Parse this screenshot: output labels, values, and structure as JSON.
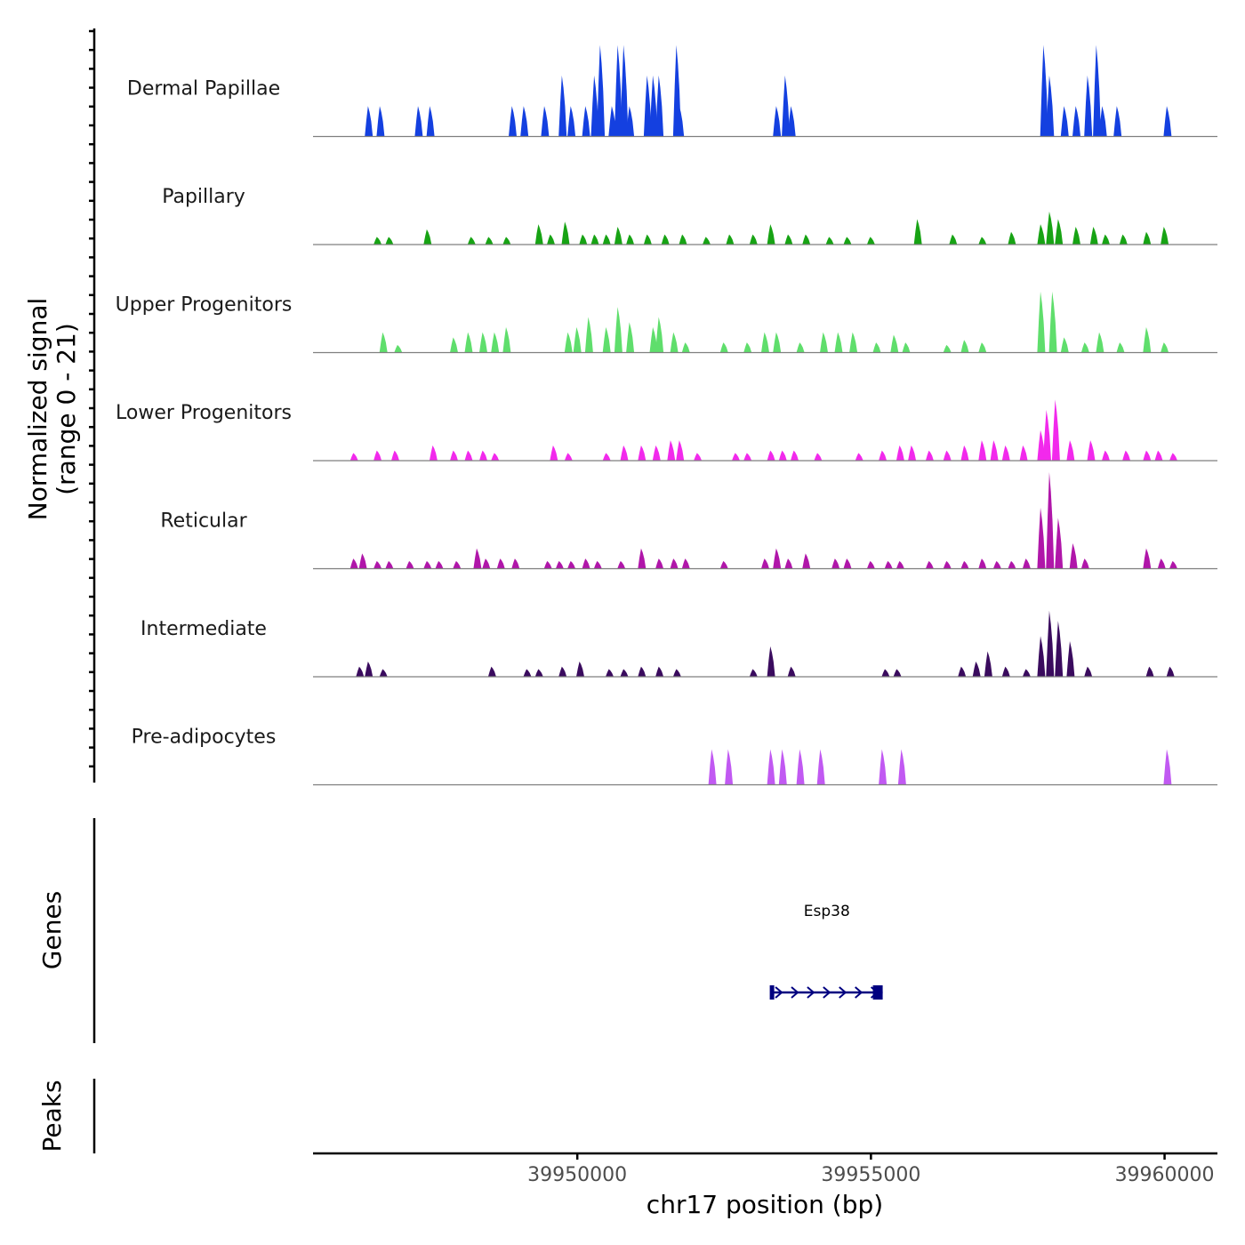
{
  "chart_data": {
    "type": "area",
    "title": "",
    "ylabel_lines": [
      "Normalized signal",
      "(range 0 - 21)"
    ],
    "y_range": [
      0,
      21
    ],
    "xlabel": "chr17 position (bp)",
    "xlim": [
      39945500,
      39960900
    ],
    "x_ticks": [
      {
        "value": 39950000,
        "label": "39950000"
      },
      {
        "value": 39955000,
        "label": "39955000"
      },
      {
        "value": 39960000,
        "label": "39960000"
      }
    ],
    "series": [
      {
        "name": "Dermal Papillae",
        "color": "#1440e0",
        "peaks": [
          [
            39946450,
            6
          ],
          [
            39946650,
            6
          ],
          [
            39947300,
            6
          ],
          [
            39947500,
            6
          ],
          [
            39948900,
            6
          ],
          [
            39949100,
            6
          ],
          [
            39949450,
            6
          ],
          [
            39949750,
            12
          ],
          [
            39949900,
            6
          ],
          [
            39950150,
            6
          ],
          [
            39950300,
            12
          ],
          [
            39950400,
            18
          ],
          [
            39950600,
            6
          ],
          [
            39950700,
            18
          ],
          [
            39950800,
            18
          ],
          [
            39950900,
            6
          ],
          [
            39951200,
            12
          ],
          [
            39951300,
            12
          ],
          [
            39951400,
            12
          ],
          [
            39951700,
            18
          ],
          [
            39951750,
            6
          ],
          [
            39953400,
            6
          ],
          [
            39953550,
            12
          ],
          [
            39953650,
            6
          ],
          [
            39957950,
            18
          ],
          [
            39958050,
            12
          ],
          [
            39958300,
            6
          ],
          [
            39958500,
            6
          ],
          [
            39958700,
            12
          ],
          [
            39958850,
            18
          ],
          [
            39958950,
            6
          ],
          [
            39959200,
            6
          ],
          [
            39960050,
            6
          ]
        ]
      },
      {
        "name": "Papillary",
        "color": "#17a314",
        "peaks": [
          [
            39946600,
            1.5
          ],
          [
            39946800,
            1.5
          ],
          [
            39947450,
            3
          ],
          [
            39948200,
            1.5
          ],
          [
            39948500,
            1.5
          ],
          [
            39948800,
            1.5
          ],
          [
            39949350,
            4
          ],
          [
            39949550,
            2
          ],
          [
            39949800,
            4.5
          ],
          [
            39950100,
            2
          ],
          [
            39950300,
            2
          ],
          [
            39950500,
            2
          ],
          [
            39950700,
            3.5
          ],
          [
            39950900,
            2
          ],
          [
            39951200,
            2
          ],
          [
            39951500,
            2
          ],
          [
            39951800,
            2
          ],
          [
            39952200,
            1.5
          ],
          [
            39952600,
            2
          ],
          [
            39953000,
            2
          ],
          [
            39953300,
            4
          ],
          [
            39953600,
            2
          ],
          [
            39953900,
            2
          ],
          [
            39954300,
            1.5
          ],
          [
            39954600,
            1.5
          ],
          [
            39955000,
            1.5
          ],
          [
            39955800,
            5
          ],
          [
            39956400,
            2
          ],
          [
            39956900,
            1.5
          ],
          [
            39957400,
            2.5
          ],
          [
            39957900,
            4
          ],
          [
            39958050,
            6.5
          ],
          [
            39958200,
            5
          ],
          [
            39958500,
            3.5
          ],
          [
            39958800,
            3.5
          ],
          [
            39959000,
            2
          ],
          [
            39959300,
            2
          ],
          [
            39959700,
            2.5
          ],
          [
            39960000,
            3.5
          ]
        ]
      },
      {
        "name": "Upper Progenitors",
        "color": "#5fde6c",
        "peaks": [
          [
            39946700,
            4
          ],
          [
            39946950,
            1.5
          ],
          [
            39947900,
            3
          ],
          [
            39948150,
            4
          ],
          [
            39948400,
            4
          ],
          [
            39948600,
            4
          ],
          [
            39948800,
            5
          ],
          [
            39949850,
            4
          ],
          [
            39950000,
            5
          ],
          [
            39950200,
            7
          ],
          [
            39950500,
            5
          ],
          [
            39950700,
            9
          ],
          [
            39950900,
            6
          ],
          [
            39951300,
            5
          ],
          [
            39951400,
            7
          ],
          [
            39951650,
            4
          ],
          [
            39951850,
            2
          ],
          [
            39952500,
            2
          ],
          [
            39952900,
            2
          ],
          [
            39953200,
            4
          ],
          [
            39953400,
            4
          ],
          [
            39953800,
            2
          ],
          [
            39954200,
            4
          ],
          [
            39954450,
            4
          ],
          [
            39954700,
            4
          ],
          [
            39955100,
            2
          ],
          [
            39955400,
            3.5
          ],
          [
            39955600,
            2
          ],
          [
            39956300,
            1.5
          ],
          [
            39956600,
            2.5
          ],
          [
            39956900,
            2
          ],
          [
            39957900,
            12
          ],
          [
            39958100,
            12
          ],
          [
            39958300,
            3
          ],
          [
            39958650,
            2
          ],
          [
            39958900,
            4
          ],
          [
            39959250,
            2
          ],
          [
            39959700,
            5
          ],
          [
            39960000,
            2
          ]
        ]
      },
      {
        "name": "Lower Progenitors",
        "color": "#f229ec",
        "peaks": [
          [
            39946200,
            1.5
          ],
          [
            39946600,
            2
          ],
          [
            39946900,
            2
          ],
          [
            39947550,
            3
          ],
          [
            39947900,
            2
          ],
          [
            39948150,
            2
          ],
          [
            39948400,
            2
          ],
          [
            39948600,
            1.5
          ],
          [
            39949600,
            3
          ],
          [
            39949850,
            1.5
          ],
          [
            39950500,
            1.5
          ],
          [
            39950800,
            3
          ],
          [
            39951100,
            3
          ],
          [
            39951350,
            3
          ],
          [
            39951600,
            4
          ],
          [
            39951750,
            4
          ],
          [
            39952050,
            1.5
          ],
          [
            39952700,
            1.5
          ],
          [
            39952900,
            1.5
          ],
          [
            39953300,
            2
          ],
          [
            39953500,
            2
          ],
          [
            39953700,
            2
          ],
          [
            39954100,
            1.5
          ],
          [
            39954800,
            1.5
          ],
          [
            39955200,
            2
          ],
          [
            39955500,
            3
          ],
          [
            39955700,
            3
          ],
          [
            39956000,
            2
          ],
          [
            39956300,
            2
          ],
          [
            39956600,
            3
          ],
          [
            39956900,
            4
          ],
          [
            39957100,
            4
          ],
          [
            39957300,
            3
          ],
          [
            39957600,
            3
          ],
          [
            39957900,
            6
          ],
          [
            39958000,
            10
          ],
          [
            39958150,
            12
          ],
          [
            39958400,
            4
          ],
          [
            39958750,
            4
          ],
          [
            39959000,
            2
          ],
          [
            39959350,
            2
          ],
          [
            39959700,
            2
          ],
          [
            39959900,
            2
          ],
          [
            39960150,
            1.5
          ]
        ]
      },
      {
        "name": "Reticular",
        "color": "#b016a9",
        "peaks": [
          [
            39946200,
            2
          ],
          [
            39946350,
            3
          ],
          [
            39946600,
            1.5
          ],
          [
            39946800,
            1.5
          ],
          [
            39947150,
            1.5
          ],
          [
            39947450,
            1.5
          ],
          [
            39947650,
            1.5
          ],
          [
            39947950,
            1.5
          ],
          [
            39948300,
            4
          ],
          [
            39948450,
            2
          ],
          [
            39948700,
            2
          ],
          [
            39948950,
            2
          ],
          [
            39949500,
            1.5
          ],
          [
            39949700,
            1.5
          ],
          [
            39949900,
            1.5
          ],
          [
            39950150,
            2
          ],
          [
            39950350,
            1.5
          ],
          [
            39950750,
            1.5
          ],
          [
            39951100,
            4
          ],
          [
            39951400,
            2
          ],
          [
            39951650,
            2
          ],
          [
            39951850,
            2
          ],
          [
            39952500,
            1.5
          ],
          [
            39953200,
            2
          ],
          [
            39953400,
            4
          ],
          [
            39953600,
            2
          ],
          [
            39953900,
            3
          ],
          [
            39954400,
            2
          ],
          [
            39954600,
            2
          ],
          [
            39955000,
            1.5
          ],
          [
            39955300,
            1.5
          ],
          [
            39955500,
            1.5
          ],
          [
            39956000,
            1.5
          ],
          [
            39956300,
            1.5
          ],
          [
            39956600,
            1.5
          ],
          [
            39956900,
            2
          ],
          [
            39957150,
            1.5
          ],
          [
            39957400,
            1.5
          ],
          [
            39957650,
            2
          ],
          [
            39957900,
            12
          ],
          [
            39958050,
            19
          ],
          [
            39958200,
            10
          ],
          [
            39958450,
            5
          ],
          [
            39958650,
            2
          ],
          [
            39959700,
            4
          ],
          [
            39959950,
            2
          ],
          [
            39960150,
            1.5
          ]
        ]
      },
      {
        "name": "Intermediate",
        "color": "#3a0b5e",
        "peaks": [
          [
            39946300,
            2
          ],
          [
            39946450,
            3
          ],
          [
            39946700,
            1.5
          ],
          [
            39948550,
            2
          ],
          [
            39949150,
            1.5
          ],
          [
            39949350,
            1.5
          ],
          [
            39949750,
            2
          ],
          [
            39950050,
            3
          ],
          [
            39950550,
            1.5
          ],
          [
            39950800,
            1.5
          ],
          [
            39951100,
            2
          ],
          [
            39951400,
            2
          ],
          [
            39951700,
            1.5
          ],
          [
            39953000,
            1.5
          ],
          [
            39953300,
            6
          ],
          [
            39953650,
            2
          ],
          [
            39955250,
            1.5
          ],
          [
            39955450,
            1.5
          ],
          [
            39956550,
            2
          ],
          [
            39956800,
            3
          ],
          [
            39957000,
            5
          ],
          [
            39957300,
            2
          ],
          [
            39957650,
            1.5
          ],
          [
            39957900,
            8
          ],
          [
            39958050,
            13
          ],
          [
            39958200,
            11
          ],
          [
            39958400,
            7
          ],
          [
            39958700,
            2
          ],
          [
            39959750,
            2
          ],
          [
            39960100,
            2
          ]
        ]
      },
      {
        "name": "Pre-adipocytes",
        "color": "#c159f2",
        "peaks": [
          [
            39952300,
            7
          ],
          [
            39952580,
            7
          ],
          [
            39953300,
            7
          ],
          [
            39953500,
            7
          ],
          [
            39953800,
            7
          ],
          [
            39954150,
            7
          ],
          [
            39955200,
            7
          ],
          [
            39955530,
            7
          ],
          [
            39960050,
            7
          ]
        ]
      }
    ],
    "gene_track_label": "Genes",
    "genes": [
      {
        "name": "Esp38",
        "start": 39953300,
        "end": 39955200,
        "strand": "+",
        "color": "#000080"
      }
    ],
    "peaks_track_label": "Peaks",
    "peaks": []
  }
}
